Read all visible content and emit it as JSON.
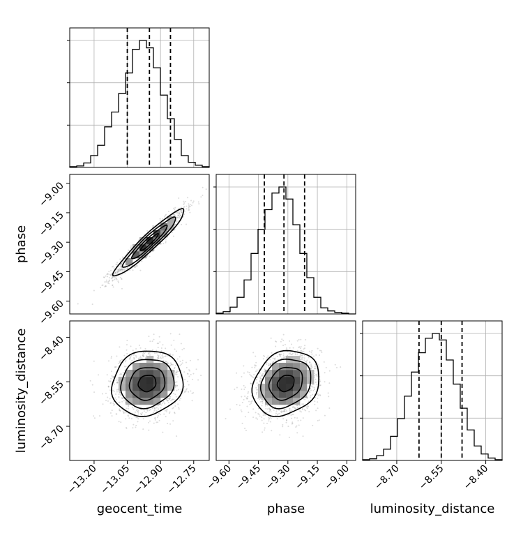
{
  "chart_data": {
    "type": "corner",
    "parameters": [
      "geocent_time",
      "phase",
      "luminosity_distance"
    ],
    "axis_labels": {
      "x": [
        "geocent_time",
        "phase",
        "luminosity_distance"
      ],
      "y": [
        "phase",
        "luminosity_distance"
      ]
    },
    "ranges": {
      "geocent_time": [
        -13.31,
        -12.68
      ],
      "phase": [
        -9.665,
        -8.955
      ],
      "luminosity_distance": [
        -8.815,
        -8.345
      ]
    },
    "ticks": {
      "geocent_time": [
        -13.2,
        -13.05,
        -12.9,
        -12.75
      ],
      "phase": [
        -9.6,
        -9.45,
        -9.3,
        -9.15,
        -9.0
      ],
      "luminosity_distance": [
        -8.7,
        -8.55,
        -8.4
      ]
    },
    "tick_labels": {
      "geocent_time": [
        "−13.20",
        "−13.05",
        "−12.90",
        "−12.75"
      ],
      "phase": [
        "−9.60",
        "−9.45",
        "−9.30",
        "−9.15",
        "−9.00"
      ],
      "luminosity_distance": [
        "−8.70",
        "−8.55",
        "−8.40"
      ]
    },
    "quantiles": {
      "geocent_time": [
        -13.05,
        -12.95,
        -12.855
      ],
      "phase": [
        -9.42,
        -9.32,
        -9.215
      ],
      "luminosity_distance": [
        -8.625,
        -8.55,
        -8.48
      ]
    },
    "histograms": {
      "geocent_time": {
        "bin_edges": [
          -13.31,
          -13.2785,
          -13.247,
          -13.2155,
          -13.184,
          -13.1525,
          -13.121,
          -13.0895,
          -13.058,
          -13.0265,
          -12.995,
          -12.9635,
          -12.932,
          -12.9005,
          -12.869,
          -12.8375,
          -12.806,
          -12.7745,
          -12.743,
          -12.7115,
          -12.68
        ],
        "counts": [
          1,
          2,
          6,
          16,
          30,
          55,
          75,
          100,
          128,
          160,
          172,
          162,
          135,
          98,
          66,
          38,
          16,
          7,
          3,
          1
        ]
      },
      "phase": {
        "bin_edges": [
          -9.665,
          -9.6295,
          -9.594,
          -9.5585,
          -9.523,
          -9.4875,
          -9.452,
          -9.4165,
          -9.381,
          -9.3455,
          -9.31,
          -9.2745,
          -9.239,
          -9.2035,
          -9.168,
          -9.1325,
          -9.097,
          -9.0615,
          -9.026,
          -8.9905,
          -8.955
        ],
        "counts": [
          1,
          3,
          9,
          22,
          45,
          80,
          112,
          138,
          160,
          168,
          152,
          118,
          80,
          48,
          22,
          8,
          4,
          2,
          1,
          0
        ]
      },
      "luminosity_distance": {
        "bin_edges": [
          -8.815,
          -8.7915,
          -8.768,
          -8.7445,
          -8.721,
          -8.6975,
          -8.674,
          -8.6505,
          -8.627,
          -8.6035,
          -8.58,
          -8.5565,
          -8.533,
          -8.5095,
          -8.486,
          -8.4625,
          -8.439,
          -8.4155,
          -8.392,
          -8.3685,
          -8.345
        ],
        "counts": [
          1,
          2,
          6,
          14,
          30,
          52,
          80,
          110,
          134,
          152,
          158,
          150,
          125,
          95,
          65,
          38,
          18,
          8,
          3,
          1
        ]
      }
    },
    "joint_2d": [
      {
        "x": "geocent_time",
        "y": "phase",
        "mean": [
          -12.95,
          -9.3
        ],
        "std": [
          0.08,
          0.085
        ],
        "correlation": 0.95,
        "contour_levels_sigma": [
          0.5,
          1.0,
          1.5,
          2.0
        ]
      },
      {
        "x": "geocent_time",
        "y": "luminosity_distance",
        "mean": [
          -12.96,
          -8.555
        ],
        "std": [
          0.08,
          0.055
        ],
        "correlation": 0.1,
        "contour_levels_sigma": [
          0.5,
          1.0,
          1.5,
          2.0
        ]
      },
      {
        "x": "phase",
        "y": "luminosity_distance",
        "mean": [
          -9.31,
          -8.555
        ],
        "std": [
          0.085,
          0.055
        ],
        "correlation": 0.2,
        "contour_levels_sigma": [
          0.5,
          1.0,
          1.5,
          2.0
        ]
      }
    ],
    "grid": true,
    "colors": {
      "line": "#000000",
      "grid": "#b0b0b0",
      "points": "#9a9a9a"
    }
  }
}
